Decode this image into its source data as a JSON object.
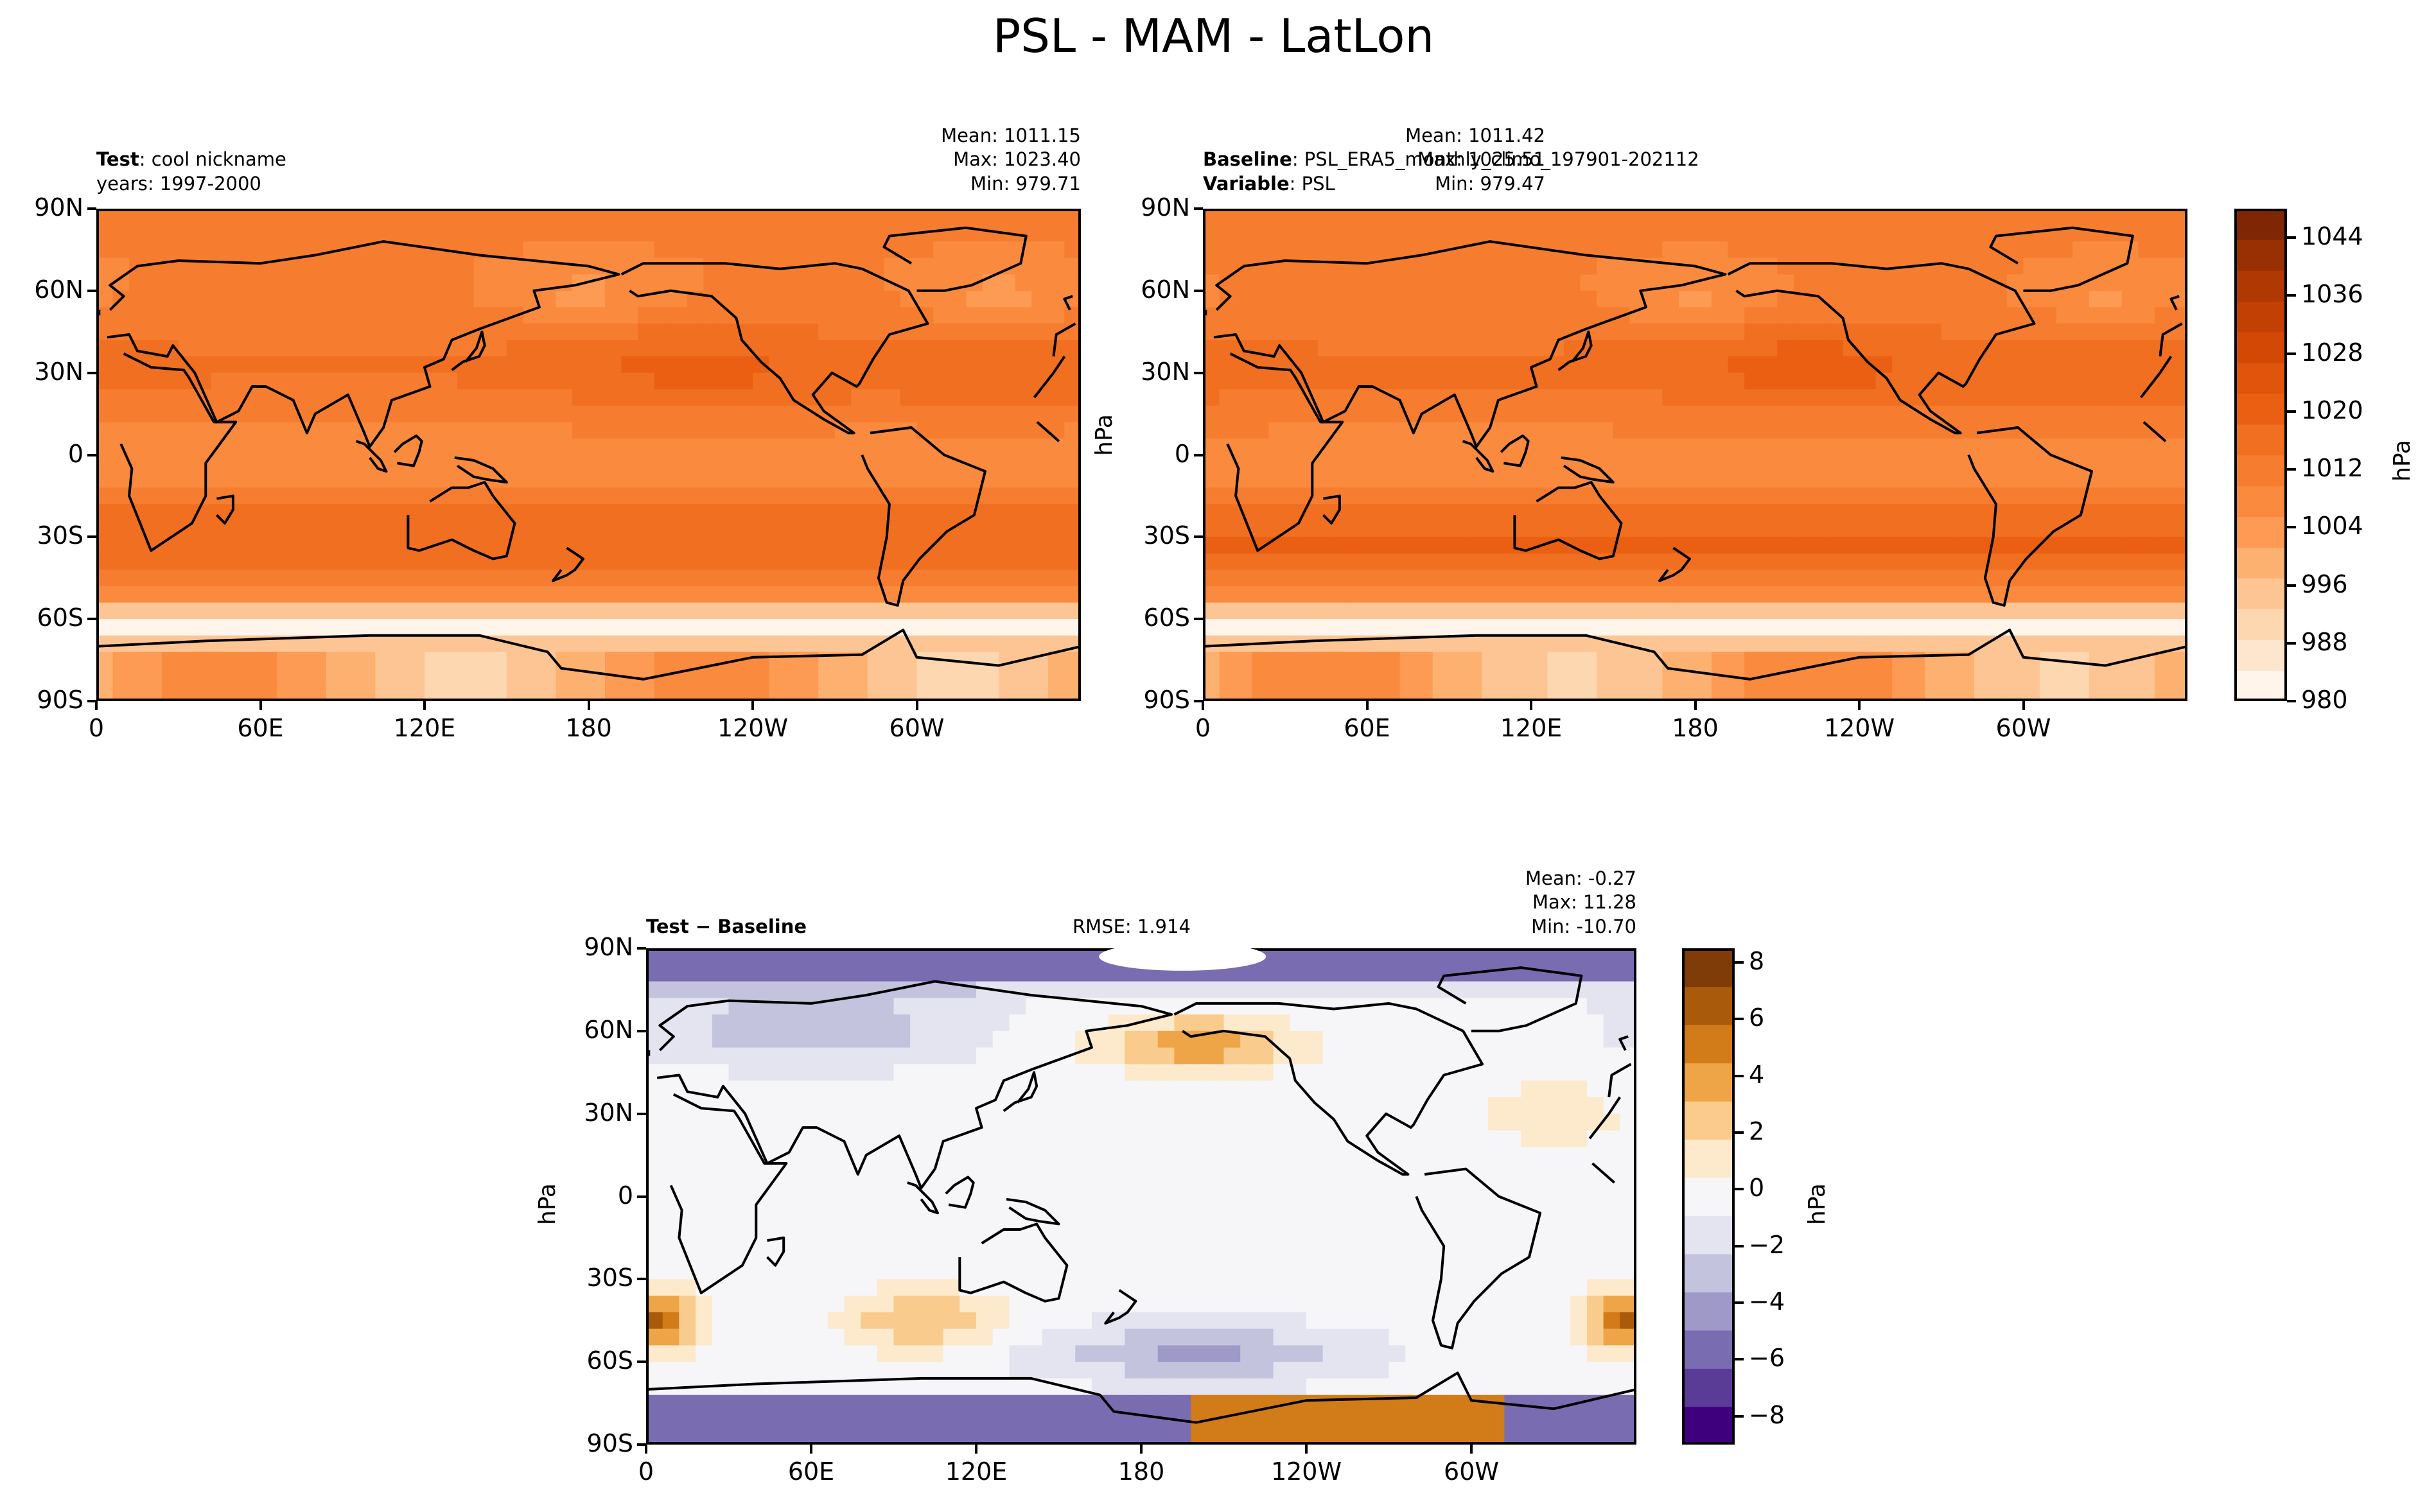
{
  "title": "PSL - MAM - LatLon",
  "test_panel": {
    "label_bold": "Test",
    "label_rest": ": cool nickname",
    "years": "years: 1997-2000",
    "mean": "Mean: 1011.15",
    "max": "Max: 1023.40",
    "min": "Min: 979.71"
  },
  "baseline_panel": {
    "label_bold": "Baseline",
    "label_rest": ": PSL_ERA5_monthly_climo_197901-202112",
    "var_bold": "Variable",
    "var_rest": ": PSL",
    "mean": "Mean: 1011.42",
    "max": "Max: 1025.51",
    "min": "Min: 979.47",
    "unit": "hPa"
  },
  "diff_panel": {
    "label": "Test − Baseline",
    "rmse": "RMSE: 1.914",
    "mean": "Mean: -0.27",
    "max": "Max: 11.28",
    "min": "Min: -10.70",
    "unit": "hPa"
  },
  "colors": {
    "abs_scale": [
      "#fff5eb",
      "#fee6ce",
      "#fdd7b0",
      "#fdc593",
      "#fdb170",
      "#fd9a53",
      "#f98a3e",
      "#f67d2f",
      "#f16f20",
      "#ea5f12",
      "#e0540b",
      "#d44806",
      "#c24004",
      "#b03803",
      "#983003",
      "#7f2704"
    ],
    "diff_scale": [
      "#3f007d",
      "#5a3b96",
      "#7a6cb0",
      "#9f99c8",
      "#c3c3de",
      "#e3e4f0",
      "#f6f6f8",
      "#fde9cc",
      "#f9cc8d",
      "#eea547",
      "#d17c18",
      "#a95a0b",
      "#7f3b08"
    ]
  },
  "chart_data": [
    {
      "type": "heatmap",
      "name": "Test",
      "title": "Test: cool nickname",
      "x_ticks": [
        "0",
        "60E",
        "120E",
        "180",
        "120W",
        "60W"
      ],
      "y_ticks": [
        "90N",
        "60N",
        "30N",
        "0",
        "30S",
        "60S",
        "90S"
      ],
      "stats": {
        "mean": 1011.15,
        "max": 1023.4,
        "min": 979.71
      }
    },
    {
      "type": "heatmap",
      "name": "Baseline",
      "title": "Baseline: PSL_ERA5_monthly_climo_197901-202112",
      "x_ticks": [
        "0",
        "60E",
        "120E",
        "180",
        "120W",
        "60W"
      ],
      "y_ticks": [
        "90N",
        "60N",
        "30N",
        "0",
        "30S",
        "60S",
        "90S"
      ],
      "stats": {
        "mean": 1011.42,
        "max": 1025.51,
        "min": 979.47
      },
      "colorbar": {
        "label": "hPa",
        "range": [
          980,
          1048
        ],
        "ticks": [
          "1044",
          "1036",
          "1028",
          "1020",
          "1012",
          "1004",
          "996",
          "988",
          "980"
        ]
      }
    },
    {
      "type": "heatmap",
      "name": "Test - Baseline",
      "x_ticks": [
        "0",
        "60E",
        "120E",
        "180",
        "120W",
        "60W"
      ],
      "y_ticks": [
        "90N",
        "60N",
        "30N",
        "0",
        "30S",
        "60S",
        "90S"
      ],
      "stats": {
        "mean": -0.27,
        "max": 11.28,
        "min": -10.7,
        "rmse": 1.914
      },
      "colorbar": {
        "label": "hPa",
        "range": [
          -9,
          8.5
        ],
        "ticks": [
          "8",
          "6",
          "4",
          "2",
          "0",
          "−2",
          "−4",
          "−6",
          "−8"
        ]
      }
    }
  ]
}
